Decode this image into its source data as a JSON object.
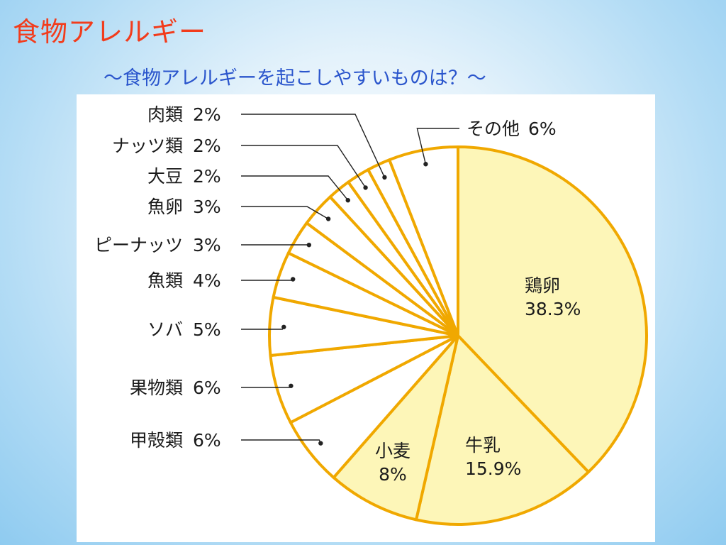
{
  "slide": {
    "title": "食物アレルギー",
    "subtitle": "～食物アレルギーを起こしやすいものは？～"
  },
  "colors": {
    "title": "#f23c1c",
    "subtitle": "#2a55cc",
    "slice_stroke": "#f0a800",
    "slice_fill_major": "#fdf6b8",
    "slice_fill_minor": "#ffffff",
    "leader_line": "#222222"
  },
  "chart_data": {
    "type": "pie",
    "start": "top",
    "direction": "clockwise",
    "slices": [
      {
        "name": "鶏卵",
        "value": 38.3,
        "value_label": "38.3%",
        "highlight": true
      },
      {
        "name": "牛乳",
        "value": 15.9,
        "value_label": "15.9%",
        "highlight": true
      },
      {
        "name": "小麦",
        "value": 8,
        "value_label": "8%",
        "highlight": true
      },
      {
        "name": "甲殻類",
        "value": 6,
        "value_label": "6%",
        "highlight": false
      },
      {
        "name": "果物類",
        "value": 6,
        "value_label": "6%",
        "highlight": false
      },
      {
        "name": "ソバ",
        "value": 5,
        "value_label": "5%",
        "highlight": false
      },
      {
        "name": "魚類",
        "value": 4,
        "value_label": "4%",
        "highlight": false
      },
      {
        "name": "ピーナッツ",
        "value": 3,
        "value_label": "3%",
        "highlight": false
      },
      {
        "name": "魚卵",
        "value": 3,
        "value_label": "3%",
        "highlight": false
      },
      {
        "name": "大豆",
        "value": 2,
        "value_label": "2%",
        "highlight": false
      },
      {
        "name": "ナッツ類",
        "value": 2,
        "value_label": "2%",
        "highlight": false
      },
      {
        "name": "肉類",
        "value": 2,
        "value_label": "2%",
        "highlight": false
      },
      {
        "name": "その他",
        "value": 6,
        "value_label": "6%",
        "highlight": false
      }
    ]
  }
}
